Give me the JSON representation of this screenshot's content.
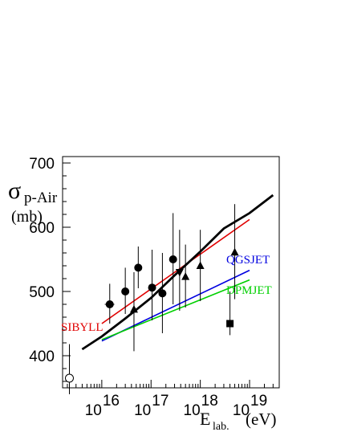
{
  "chart_data": {
    "type": "scatter",
    "title": "",
    "ylabel": {
      "symbol": "σ",
      "subscript": "p-Air",
      "unit": "(mb)"
    },
    "xlabel": {
      "symbol": "E",
      "subscript": "lab.",
      "unit": "(eV)"
    },
    "xscale": "log",
    "xlim": [
      1600000000000000.0,
      4e+19
    ],
    "ylim": [
      350,
      710
    ],
    "x_ticks": [
      {
        "value": 1e+16,
        "base": "10",
        "exp": "16"
      },
      {
        "value": 1e+17,
        "base": "10",
        "exp": "17"
      },
      {
        "value": 1e+18,
        "base": "10",
        "exp": "18"
      },
      {
        "value": 1e+19,
        "base": "10",
        "exp": "19"
      }
    ],
    "y_ticks": [
      {
        "value": 400,
        "label": "400"
      },
      {
        "value": 500,
        "label": "500"
      },
      {
        "value": 600,
        "label": "600"
      },
      {
        "value": 700,
        "label": "700"
      }
    ],
    "grid": false,
    "legend": "none",
    "series": [
      {
        "name": "",
        "marker": "circle",
        "points": [
          {
            "x": 1.45e+16,
            "y": 480,
            "ylo": 450,
            "yhi": 512,
            "xlo": 1.15e+16,
            "xhi": 1.8e+16
          },
          {
            "x": 3e+16,
            "y": 500,
            "ylo": 465,
            "yhi": 537
          },
          {
            "x": 5.5e+16,
            "y": 537,
            "ylo": 505,
            "yhi": 570
          },
          {
            "x": 1.05e+17,
            "y": 506,
            "ylo": 455,
            "yhi": 565
          },
          {
            "x": 1.7e+17,
            "y": 497,
            "ylo": 435,
            "yhi": 560
          },
          {
            "x": 2.8e+17,
            "y": 550,
            "ylo": 480,
            "yhi": 622
          }
        ]
      },
      {
        "name": "",
        "marker": "open-circle",
        "points": [
          {
            "x": 2200000000000000.0,
            "y": 365,
            "ylo": 340,
            "yhi": 418
          }
        ]
      },
      {
        "name": "",
        "marker": "triangle-up",
        "points": [
          {
            "x": 4.5e+16,
            "y": 472,
            "ylo": 407,
            "yhi": 530
          },
          {
            "x": 5e+17,
            "y": 523,
            "ylo": 475,
            "yhi": 573
          },
          {
            "x": 1e+18,
            "y": 540,
            "ylo": 485,
            "yhi": 596
          },
          {
            "x": 5e+18,
            "y": 561,
            "ylo": 488,
            "yhi": 636
          }
        ]
      },
      {
        "name": "",
        "marker": "triangle-down",
        "points": [
          {
            "x": 3.8e+17,
            "y": 530,
            "ylo": 470,
            "yhi": 596
          }
        ]
      },
      {
        "name": "",
        "marker": "square",
        "points": [
          {
            "x": 4e+18,
            "y": 450,
            "ylo": 432,
            "yhi": 500
          }
        ]
      }
    ],
    "curves": [
      {
        "name": "SIBYLL",
        "color": "#e00000",
        "width": 1.6,
        "points": [
          [
            1e+16,
            450
          ],
          [
            1e+19,
            612
          ]
        ],
        "label_anchor": "start"
      },
      {
        "name": "QGSJET",
        "color": "#0000e0",
        "width": 1.6,
        "points": [
          [
            1e+16,
            423
          ],
          [
            1e+19,
            533
          ]
        ],
        "label_anchor": "end"
      },
      {
        "name": "DPMJET",
        "color": "#00d000",
        "width": 1.6,
        "points": [
          [
            1e+16,
            425
          ],
          [
            1e+19,
            518
          ]
        ],
        "label_anchor": "end"
      },
      {
        "name": "",
        "color": "#000000",
        "width": 2.8,
        "points": [
          [
            4000000000000000.0,
            410
          ],
          [
            1e+16,
            430
          ],
          [
            3e+16,
            458
          ],
          [
            1e+17,
            490
          ],
          [
            3e+17,
            525
          ],
          [
            1e+18,
            562
          ],
          [
            3e+18,
            598
          ],
          [
            1e+19,
            622
          ],
          [
            3e+19,
            650
          ]
        ],
        "label_anchor": "none"
      }
    ]
  }
}
